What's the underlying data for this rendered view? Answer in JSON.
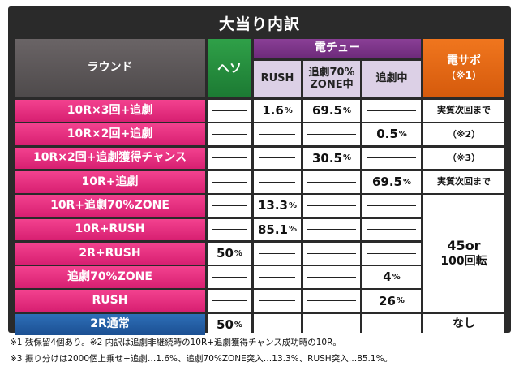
{
  "title": "大当り内訳",
  "headers": {
    "round": "ラウンド",
    "heso": "ヘソ",
    "den_chu": "電チュー",
    "rush": "RUSH",
    "zone_line1": "追劇70%",
    "zone_line2": "ZONE中",
    "tsuigeki": "追劇中",
    "densapo": "電サポ",
    "densapo_note": "（※1）"
  },
  "rows": [
    {
      "label": "10R×3回+追劇",
      "heso": "",
      "rush": "1.6",
      "zone": "69.5",
      "tsuigeki": "",
      "densapo": "実質次回まで"
    },
    {
      "label": "10R×2回+追劇",
      "heso": "",
      "rush": "",
      "zone": "",
      "tsuigeki": "0.5",
      "densapo": "（※2）"
    },
    {
      "label": "10R×2回+追劇獲得チャンス",
      "heso": "",
      "rush": "",
      "zone": "30.5",
      "tsuigeki": "",
      "densapo": "（※3）"
    },
    {
      "label": "10R+追劇",
      "heso": "",
      "rush": "",
      "zone": "",
      "tsuigeki": "69.5",
      "densapo": "実質次回まで"
    },
    {
      "label": "10R+追劇70%ZONE",
      "heso": "",
      "rush": "13.3",
      "zone": "",
      "tsuigeki": ""
    },
    {
      "label": "10R+RUSH",
      "heso": "",
      "rush": "85.1",
      "zone": "",
      "tsuigeki": ""
    },
    {
      "label": "2R+RUSH",
      "heso": "50",
      "rush": "",
      "zone": "",
      "tsuigeki": ""
    },
    {
      "label": "追劇70%ZONE",
      "heso": "",
      "rush": "",
      "zone": "",
      "tsuigeki": "4"
    },
    {
      "label": "RUSH",
      "heso": "",
      "rush": "",
      "zone": "",
      "tsuigeki": "26"
    },
    {
      "label": "2R通常",
      "heso": "50",
      "rush": "",
      "zone": "",
      "tsuigeki": "",
      "densapo": "なし"
    }
  ],
  "merged_densapo": {
    "line1": "45or",
    "line2": "100回転"
  },
  "percent_unit": "%",
  "notes": [
    "※1 残保留4個あり。※2 内訳は追劇非継続時の10R+追劇獲得チャンス成功時の10R。",
    "※3 振り分けは2000個上乗せ+追劇…1.6%、追劇70%ZONE突入…13.3%、RUSH突入…85.1%。"
  ],
  "colors": {
    "round_label": "#e0277e",
    "normal_label": "#1b4f92",
    "heso_header": "#1c7a33",
    "den_chu_header": "#6d2a7a",
    "densapo_header": "#d55a0c"
  }
}
